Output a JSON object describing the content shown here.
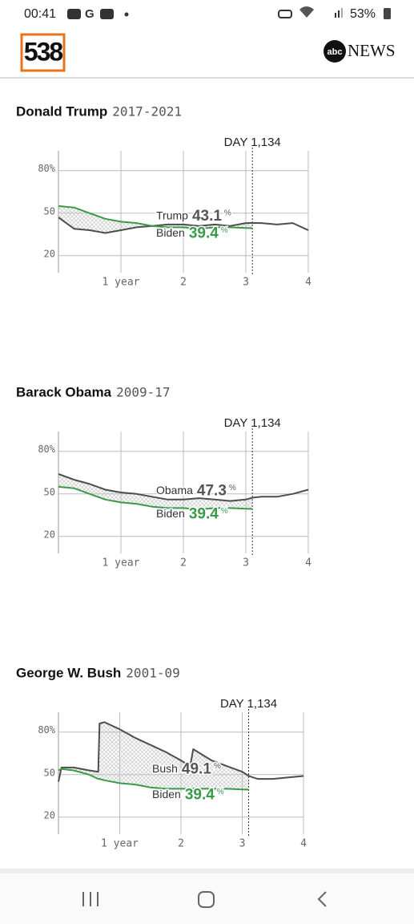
{
  "status_bar": {
    "time": "00:41",
    "battery": "53%"
  },
  "header": {
    "logo": "538",
    "network_logo_circle": "abc",
    "network_logo_text": "NEWS"
  },
  "chart_data": [
    {
      "type": "line",
      "title": "Donald Trump",
      "subtitle": "2017-2021",
      "annotation": {
        "text": "DAY 1,134",
        "x": 3.105
      },
      "x": [
        0,
        0.25,
        0.5,
        0.75,
        1,
        1.25,
        1.5,
        1.75,
        2,
        2.25,
        2.5,
        2.75,
        3,
        3.105,
        3.25,
        3.5,
        3.75,
        4
      ],
      "series": [
        {
          "name": "Trump",
          "color": "#4d4d4d",
          "label_value": 43.1,
          "values": [
            47,
            39,
            38,
            36,
            38,
            40,
            41,
            42,
            42,
            41,
            42,
            41,
            43,
            43.1,
            43,
            42,
            43,
            38
          ]
        },
        {
          "name": "Biden",
          "color": "#3a9a4a",
          "label_value": 39.4,
          "values": [
            55,
            54,
            50,
            46,
            44,
            43,
            41,
            40,
            40,
            39,
            40,
            40,
            39.5,
            39.4,
            null,
            null,
            null,
            null
          ]
        }
      ],
      "label_unit": "%",
      "xlim": [
        0,
        4
      ],
      "xticks": [
        {
          "value": 1,
          "label": "1 year"
        },
        2,
        3,
        4
      ],
      "ylim": [
        8,
        94
      ],
      "yticks": [
        {
          "value": 80,
          "label": "80%"
        },
        50,
        20
      ],
      "grid": true,
      "fill_between": true
    },
    {
      "type": "line",
      "title": "Barack Obama",
      "subtitle": "2009-17",
      "annotation": {
        "text": "DAY 1,134",
        "x": 3.105
      },
      "x": [
        0,
        0.25,
        0.5,
        0.75,
        1,
        1.25,
        1.5,
        1.75,
        2,
        2.25,
        2.5,
        2.75,
        3,
        3.105,
        3.25,
        3.5,
        3.75,
        4
      ],
      "series": [
        {
          "name": "Obama",
          "color": "#4d4d4d",
          "label_value": 47.3,
          "values": [
            64,
            60,
            57,
            53,
            51,
            50,
            48,
            46,
            46,
            47,
            46,
            45,
            46,
            47.3,
            48,
            48,
            50,
            53
          ]
        },
        {
          "name": "Biden",
          "color": "#3a9a4a",
          "label_value": 39.4,
          "values": [
            55,
            54,
            50,
            46,
            44,
            43,
            41,
            40,
            40,
            39,
            40,
            40,
            39.5,
            39.4,
            null,
            null,
            null,
            null
          ]
        }
      ],
      "label_unit": "%",
      "xlim": [
        0,
        4
      ],
      "xticks": [
        {
          "value": 1,
          "label": "1 year"
        },
        2,
        3,
        4
      ],
      "ylim": [
        8,
        94
      ],
      "yticks": [
        {
          "value": 80,
          "label": "80%"
        },
        50,
        20
      ],
      "grid": true,
      "fill_between": true
    },
    {
      "type": "line",
      "title": "George W. Bush",
      "subtitle": "2001-09",
      "annotation": {
        "text": "DAY 1,134",
        "x": 3.105
      },
      "x": [
        0,
        0.05,
        0.25,
        0.5,
        0.65,
        0.67,
        0.75,
        1,
        1.25,
        1.5,
        1.75,
        2,
        2.15,
        2.2,
        2.5,
        2.75,
        3,
        3.105,
        3.25,
        3.5,
        3.75,
        4
      ],
      "series": [
        {
          "name": "Bush",
          "color": "#4d4d4d",
          "label_value": 49.1,
          "values": [
            45,
            55,
            55,
            53,
            52,
            86,
            87,
            82,
            76,
            71,
            66,
            60,
            56,
            68,
            60,
            56,
            52,
            49.1,
            47,
            47,
            48,
            49
          ]
        },
        {
          "name": "Biden",
          "color": "#3a9a4a",
          "label_value": 39.4,
          "values": [
            53,
            54,
            53,
            50,
            47,
            47,
            46,
            44,
            43,
            41,
            40,
            40,
            40,
            40,
            40,
            40,
            39.5,
            39.4,
            null,
            null,
            null,
            null
          ]
        }
      ],
      "label_unit": "%",
      "xlim": [
        0,
        4
      ],
      "xticks": [
        {
          "value": 1,
          "label": "1 year"
        },
        2,
        3,
        4
      ],
      "ylim": [
        8,
        94
      ],
      "yticks": [
        {
          "value": 80,
          "label": "80%"
        },
        50,
        20
      ],
      "grid": true,
      "fill_between": true
    }
  ]
}
